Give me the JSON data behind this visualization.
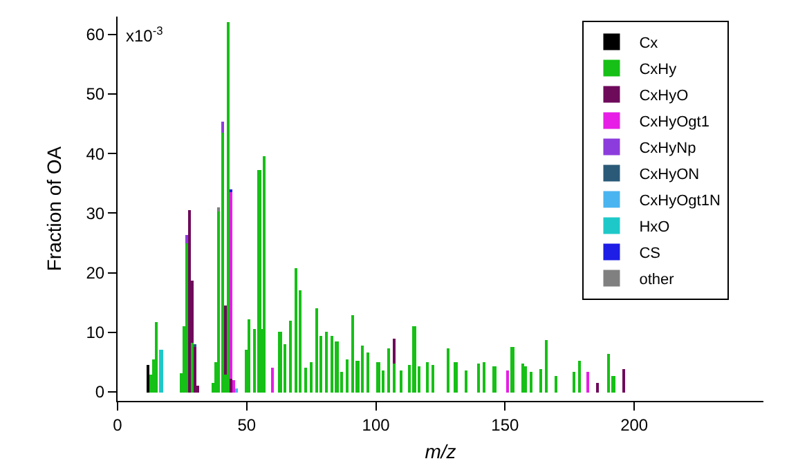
{
  "chart_data": {
    "type": "bar",
    "stacked": true,
    "xlabel": "m/z",
    "ylabel": "Fraction of OA",
    "annotations": [
      "x10$^{-3}$"
    ],
    "x": [
      12,
      13,
      14,
      15,
      17,
      25,
      26,
      27,
      28,
      29,
      30,
      31,
      37,
      38,
      39,
      41,
      42,
      43,
      44,
      45,
      46,
      50,
      51,
      53,
      54,
      55,
      56,
      57,
      60,
      63,
      65,
      67,
      69,
      71,
      73,
      75,
      77,
      79,
      81,
      83,
      85,
      87,
      89,
      91,
      93,
      95,
      97,
      101,
      103,
      105,
      107,
      110,
      113,
      115,
      117,
      120,
      122,
      128,
      131,
      135,
      140,
      142,
      146,
      151,
      153,
      157,
      158,
      160,
      164,
      166,
      170,
      177,
      179,
      182,
      186,
      190,
      192,
      196
    ],
    "xlim": [
      0,
      250
    ],
    "xticks": [
      0,
      50,
      100,
      150,
      200
    ],
    "ylim": [
      -1.5,
      63
    ],
    "yticks": [
      0,
      10,
      20,
      30,
      40,
      50,
      60
    ],
    "grid": false,
    "legend": "top right",
    "series": [
      {
        "name": "Cx",
        "color": "#000000",
        "values": [
          4.5,
          null,
          null,
          null,
          null,
          null,
          null,
          null,
          null,
          null,
          null,
          null,
          null,
          null,
          null,
          null,
          null,
          null,
          null,
          null,
          null,
          null,
          null,
          null,
          null,
          null,
          null,
          null,
          null,
          null,
          null,
          null,
          null,
          null,
          null,
          null,
          null,
          null,
          null,
          null,
          null,
          null,
          null,
          null,
          null,
          null,
          null,
          null,
          null,
          null,
          null,
          null,
          null,
          null,
          null,
          null,
          null,
          null,
          null,
          null,
          null,
          null,
          null,
          null,
          null,
          null,
          null,
          null,
          null,
          null,
          null,
          null,
          null,
          null,
          null,
          null,
          null,
          null
        ]
      },
      {
        "name": "CxHy",
        "color": "#16c016",
        "values": [
          null,
          3,
          5.5,
          11.8,
          null,
          3.2,
          11,
          24.9,
          null,
          8.2,
          null,
          null,
          1.5,
          5,
          30.4,
          43.4,
          3,
          62,
          null,
          null,
          null,
          7,
          12.2,
          10.5,
          null,
          37.2,
          10.6,
          39.6,
          null,
          10.2,
          8,
          11.9,
          20.8,
          17.1,
          4,
          5,
          14,
          9.4,
          10.2,
          9.4,
          8.5,
          3.4,
          5.5,
          12.8,
          5.3,
          7.8,
          6.6,
          5,
          3.7,
          7.3,
          4.8,
          3.7,
          4.6,
          11.1,
          4.3,
          5,
          4.5,
          7.4,
          5,
          3.7,
          4.8,
          4.9,
          4.4,
          null,
          7.6,
          4.7,
          4.4,
          3.3,
          3.8,
          8.6,
          2.6,
          3.4,
          5.2,
          null,
          null,
          6.3,
          2.7,
          null
        ]
      },
      {
        "name": "CxHyO",
        "color": "#6e0a5a",
        "values": [
          null,
          null,
          null,
          null,
          null,
          null,
          null,
          null,
          30.5,
          10.6,
          7.5,
          1,
          null,
          null,
          null,
          null,
          11.6,
          null,
          2.2,
          null,
          null,
          null,
          null,
          null,
          null,
          null,
          null,
          null,
          null,
          null,
          null,
          null,
          null,
          null,
          null,
          null,
          null,
          null,
          null,
          null,
          null,
          null,
          null,
          null,
          null,
          null,
          null,
          null,
          null,
          null,
          4.2,
          null,
          null,
          null,
          null,
          null,
          null,
          null,
          null,
          null,
          null,
          null,
          null,
          null,
          null,
          null,
          null,
          null,
          null,
          null,
          null,
          null,
          null,
          null,
          1.6,
          null,
          null,
          3.8
        ]
      },
      {
        "name": "CxHyOgt1",
        "color": "#e61ee6",
        "values": [
          null,
          null,
          null,
          null,
          null,
          null,
          null,
          null,
          null,
          null,
          null,
          null,
          null,
          null,
          null,
          null,
          null,
          null,
          31.3,
          2,
          null,
          null,
          null,
          null,
          null,
          null,
          null,
          null,
          4,
          null,
          null,
          null,
          null,
          null,
          null,
          null,
          null,
          null,
          null,
          null,
          null,
          null,
          null,
          null,
          null,
          null,
          null,
          null,
          null,
          null,
          null,
          null,
          null,
          null,
          null,
          null,
          null,
          null,
          null,
          null,
          null,
          null,
          null,
          3.7,
          null,
          null,
          null,
          null,
          null,
          null,
          null,
          null,
          null,
          3.4,
          null,
          null,
          null,
          null
        ]
      },
      {
        "name": "CxHyNp",
        "color": "#8c3cdc",
        "values": [
          null,
          null,
          null,
          null,
          null,
          null,
          null,
          1.5,
          null,
          null,
          null,
          null,
          null,
          null,
          null,
          2,
          null,
          null,
          null,
          null,
          null,
          null,
          null,
          null,
          null,
          null,
          null,
          null,
          null,
          null,
          null,
          null,
          null,
          null,
          null,
          null,
          null,
          null,
          null,
          null,
          null,
          null,
          null,
          null,
          null,
          null,
          null,
          null,
          null,
          null,
          null,
          null,
          null,
          null,
          null,
          null,
          null,
          null,
          null,
          null,
          null,
          null,
          null,
          null,
          null,
          null,
          null,
          null,
          null,
          null,
          null,
          null,
          null,
          null,
          null,
          null,
          null,
          null
        ]
      },
      {
        "name": "CxHyON",
        "color": "#2a5a78",
        "values": [
          null,
          null,
          null,
          null,
          null,
          null,
          null,
          null,
          null,
          null,
          0.5,
          null,
          null,
          null,
          null,
          null,
          null,
          null,
          null,
          null,
          null,
          null,
          null,
          null,
          null,
          null,
          null,
          null,
          null,
          null,
          null,
          null,
          null,
          null,
          null,
          null,
          null,
          null,
          null,
          null,
          null,
          null,
          null,
          null,
          null,
          null,
          null,
          null,
          null,
          null,
          null,
          null,
          null,
          null,
          null,
          null,
          null,
          null,
          null,
          null,
          null,
          null,
          null,
          null,
          null,
          null,
          null,
          null,
          null,
          null,
          null,
          null,
          null,
          null,
          null,
          null,
          null,
          null
        ]
      },
      {
        "name": "CxHyOgt1N",
        "color": "#4ab4f0",
        "values": [
          null,
          null,
          null,
          null,
          null,
          null,
          null,
          null,
          null,
          null,
          null,
          null,
          null,
          null,
          null,
          null,
          null,
          null,
          null,
          null,
          0.5,
          null,
          null,
          null,
          null,
          null,
          null,
          null,
          null,
          null,
          null,
          null,
          null,
          null,
          null,
          null,
          null,
          null,
          null,
          null,
          null,
          null,
          null,
          null,
          null,
          null,
          null,
          null,
          null,
          null,
          null,
          null,
          null,
          null,
          null,
          null,
          null,
          null,
          null,
          null,
          null,
          null,
          null,
          null,
          null,
          null,
          null,
          null,
          null,
          null,
          null,
          null,
          null,
          null,
          null,
          null,
          null,
          null
        ]
      },
      {
        "name": "HxO",
        "color": "#1ec8c8",
        "values": [
          null,
          null,
          null,
          null,
          7,
          null,
          null,
          null,
          null,
          null,
          null,
          null,
          null,
          null,
          null,
          null,
          null,
          null,
          null,
          null,
          null,
          null,
          null,
          null,
          null,
          null,
          null,
          null,
          null,
          null,
          null,
          null,
          null,
          null,
          null,
          null,
          null,
          null,
          null,
          null,
          null,
          null,
          null,
          null,
          null,
          null,
          null,
          null,
          null,
          null,
          null,
          null,
          null,
          null,
          null,
          null,
          null,
          null,
          null,
          null,
          null,
          null,
          null,
          null,
          null,
          null,
          null,
          null,
          null,
          null,
          null,
          null,
          null,
          null,
          null,
          null,
          null,
          null
        ]
      },
      {
        "name": "CS",
        "color": "#1e1ee6",
        "values": [
          null,
          null,
          null,
          null,
          null,
          null,
          null,
          null,
          null,
          null,
          null,
          null,
          null,
          null,
          null,
          null,
          null,
          null,
          0.5,
          null,
          null,
          null,
          null,
          null,
          null,
          null,
          null,
          null,
          null,
          null,
          null,
          null,
          null,
          null,
          null,
          null,
          null,
          null,
          null,
          null,
          null,
          null,
          null,
          null,
          null,
          null,
          null,
          null,
          null,
          null,
          null,
          null,
          null,
          null,
          null,
          null,
          null,
          null,
          null,
          null,
          null,
          null,
          null,
          null,
          null,
          null,
          null,
          null,
          null,
          null,
          null,
          null,
          null,
          null,
          null,
          null,
          null,
          null
        ]
      },
      {
        "name": "other",
        "color": "#808080",
        "values": [
          null,
          null,
          null,
          null,
          null,
          null,
          null,
          null,
          null,
          null,
          null,
          null,
          null,
          null,
          0.5,
          null,
          null,
          null,
          null,
          null,
          null,
          null,
          null,
          null,
          null,
          null,
          null,
          null,
          null,
          null,
          null,
          null,
          null,
          null,
          null,
          null,
          null,
          null,
          null,
          null,
          null,
          null,
          null,
          null,
          null,
          null,
          null,
          null,
          null,
          null,
          null,
          null,
          null,
          null,
          null,
          null,
          null,
          null,
          null,
          null,
          null,
          null,
          null,
          null,
          null,
          null,
          null,
          null,
          null,
          null,
          null,
          null,
          null,
          null,
          null,
          null,
          null,
          null
        ]
      }
    ]
  }
}
